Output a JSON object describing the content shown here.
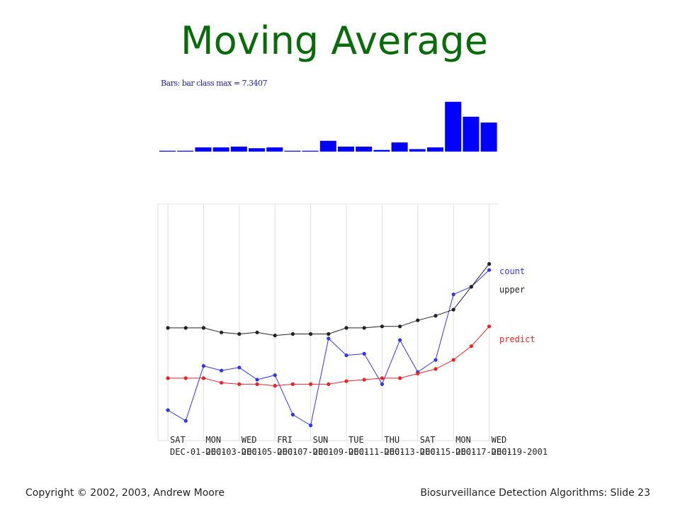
{
  "slide": {
    "title": "Moving Average",
    "copyright": "Copyright © 2002, 2003, Andrew  Moore",
    "slide_info": "Biosurveillance Detection Algorithms: Slide 23"
  },
  "chart_data": [
    {
      "type": "bar",
      "header": "Bars: bar class  max = 7.3407",
      "color": "#0000ff",
      "values": [
        0.1,
        0.1,
        0.5,
        0.5,
        0.6,
        0.4,
        0.5,
        0.1,
        0.1,
        1.3,
        0.6,
        0.6,
        0.2,
        1.1,
        0.3,
        0.5,
        6.0,
        4.2,
        3.5
      ],
      "ylim": [
        0,
        7.3407
      ]
    },
    {
      "type": "line",
      "x_labels": [
        "SAT",
        "MON",
        "WED",
        "FRI",
        "SUN",
        "TUE",
        "THU",
        "SAT",
        "MON",
        "WED"
      ],
      "x_date_labels": [
        "DEC-01-2001",
        "DEC-03-2001",
        "DEC-05-2001",
        "DEC-07-2001",
        "DEC-09-2001",
        "DEC-11-2001",
        "DEC-13-2001",
        "DEC-15-2001",
        "DEC-17-2001",
        "DEC-19-2001"
      ],
      "grid": true,
      "ylim": [
        0,
        12
      ],
      "series": [
        {
          "name": "count",
          "color": "#3333ee",
          "values": [
            2.0,
            1.3,
            4.9,
            4.6,
            4.8,
            4.0,
            4.3,
            1.7,
            1.0,
            6.7,
            5.6,
            5.7,
            3.7,
            6.6,
            4.5,
            5.3,
            9.6,
            10.1,
            11.2
          ]
        },
        {
          "name": "upper",
          "color": "#222222",
          "values": [
            7.4,
            7.4,
            7.4,
            7.1,
            7.0,
            7.1,
            6.9,
            7.0,
            7.0,
            7.0,
            7.4,
            7.4,
            7.5,
            7.5,
            7.9,
            8.2,
            8.6,
            10.1,
            11.6
          ]
        },
        {
          "name": "predict",
          "color": "#ee2222",
          "values": [
            4.1,
            4.1,
            4.1,
            3.8,
            3.7,
            3.7,
            3.6,
            3.7,
            3.7,
            3.7,
            3.9,
            4.0,
            4.1,
            4.1,
            4.4,
            4.7,
            5.3,
            6.2,
            7.5
          ]
        }
      ]
    }
  ]
}
